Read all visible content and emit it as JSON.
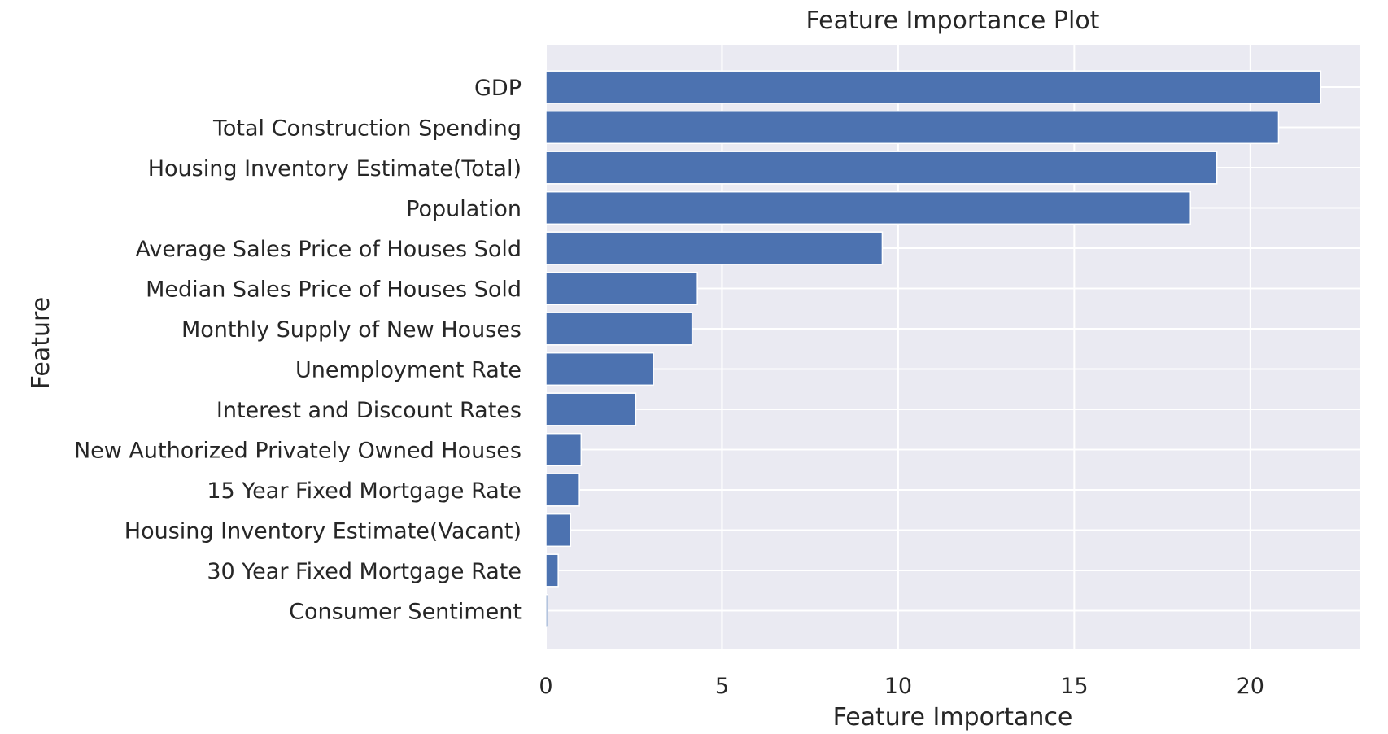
{
  "chart_data": {
    "type": "bar",
    "orientation": "horizontal",
    "title": "Feature Importance Plot",
    "xlabel": "Feature Importance",
    "ylabel": "Feature",
    "categories": [
      "GDP",
      "Total Construction Spending",
      "Housing Inventory Estimate(Total)",
      "Population",
      "Average Sales Price of Houses Sold",
      "Median Sales Price of Houses Sold",
      "Monthly Supply of New Houses",
      "Unemployment Rate",
      "Interest and Discount Rates",
      "New Authorized Privately Owned Houses",
      "15 Year Fixed Mortgage Rate",
      "Housing Inventory Estimate(Vacant)",
      "30 Year Fixed Mortgage Rate",
      "Consumer Sentiment"
    ],
    "values": [
      22.0,
      20.8,
      19.05,
      18.3,
      9.55,
      4.3,
      4.15,
      3.05,
      2.55,
      1.0,
      0.95,
      0.7,
      0.35,
      0.05
    ],
    "xlim": [
      0,
      23.1
    ],
    "xticks": [
      "0",
      "5",
      "10",
      "15",
      "20"
    ],
    "grid": true,
    "bar_color": "#4c72b0",
    "background_color": "#eaeaf2",
    "grid_color": "#ffffff"
  }
}
